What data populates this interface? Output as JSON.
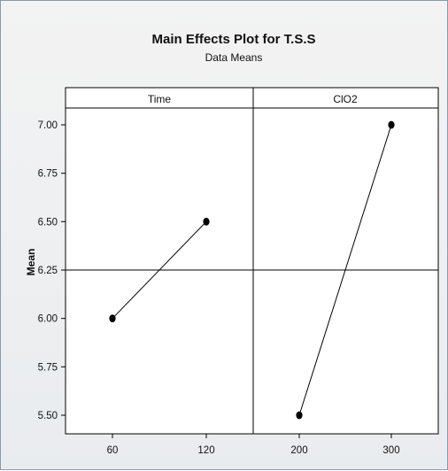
{
  "chart_data": {
    "type": "line",
    "title": "Main Effects Plot for T.S.S",
    "subtitle": "Data Means",
    "ylabel": "Mean",
    "ylim": [
      5.45,
      7.1
    ],
    "y_ticks": [
      "7.00",
      "6.75",
      "6.50",
      "6.25",
      "6.00",
      "5.75",
      "5.50"
    ],
    "reference_line": 6.25,
    "grid": false,
    "panels": [
      {
        "name": "Time",
        "categories": [
          "60",
          "120"
        ],
        "values": [
          6.0,
          6.5
        ]
      },
      {
        "name": "ClO2",
        "categories": [
          "200",
          "300"
        ],
        "values": [
          5.5,
          7.0
        ]
      }
    ]
  },
  "colors": {
    "background": "#f3f3f3",
    "plot_area": "#ffffff",
    "line": "#000000",
    "marker": "#000000"
  }
}
